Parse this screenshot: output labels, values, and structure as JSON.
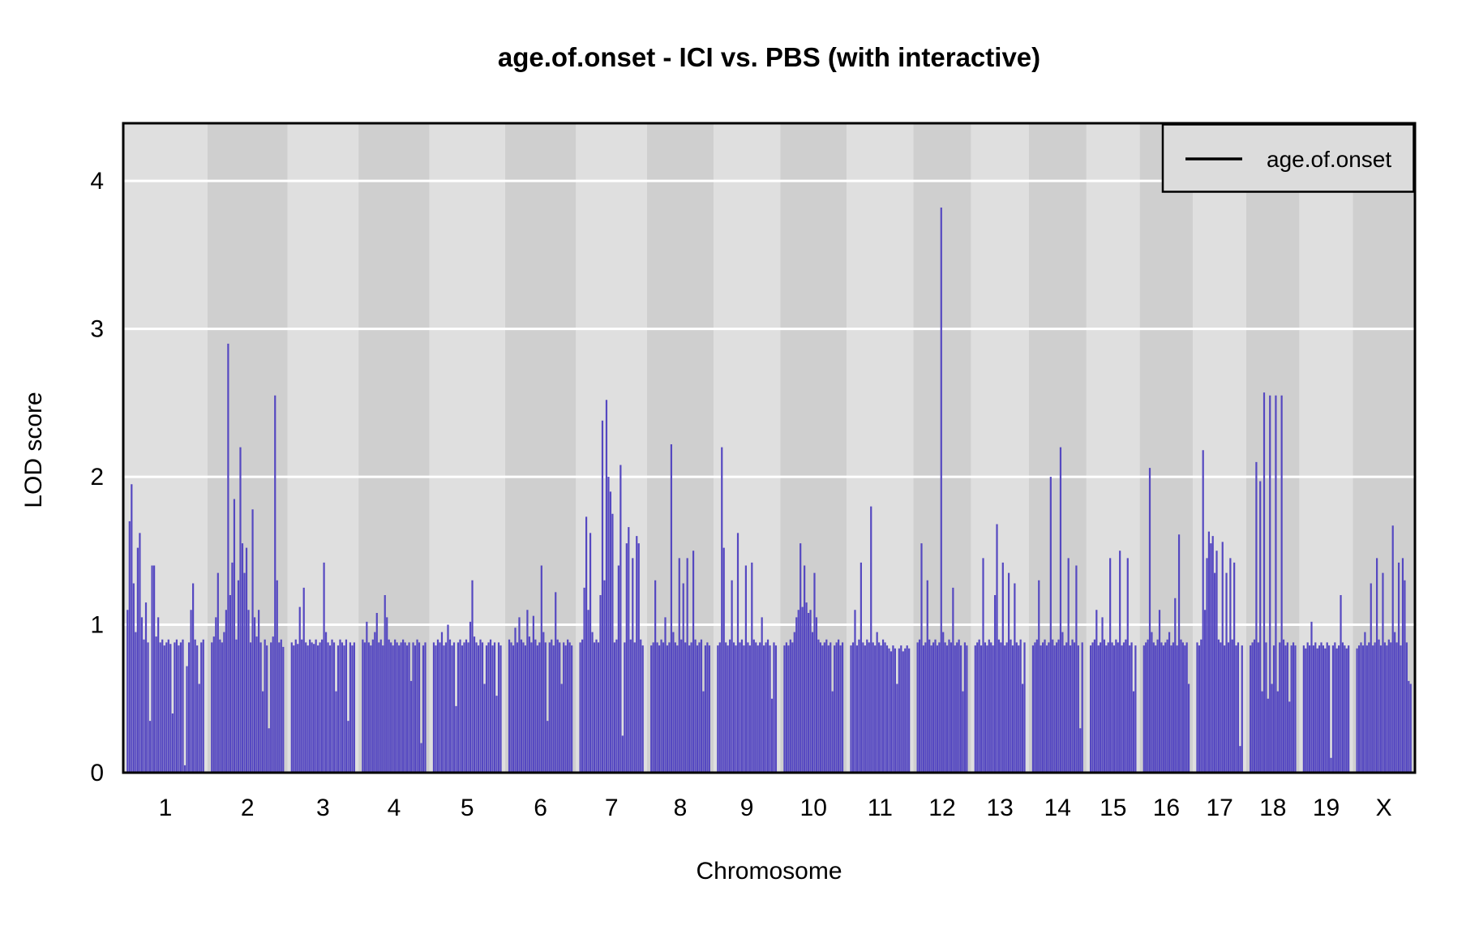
{
  "chart_data": {
    "type": "line",
    "render_style": "dense-vertical-lod-profile",
    "title": "age.of.onset - ICI vs. PBS (with interactive)",
    "xlabel": "Chromosome",
    "ylabel": "LOD score",
    "ylim": [
      0,
      4.39
    ],
    "yticks": [
      0,
      1,
      2,
      3,
      4
    ],
    "grid": "horizontal-white-lines-at-integer-lod",
    "legend": {
      "label": "age.of.onset",
      "position": "top-right",
      "line_color": "#000000",
      "background": "#DCDCDC"
    },
    "colors": {
      "series": "#5548C1",
      "band_light": "#DFDFDF",
      "band_dark": "#CFCFCF",
      "gridline": "#FFFFFF",
      "border": "#000000",
      "page_background": "#FFFFFF"
    },
    "notable_peaks": [
      {
        "chromosome": "2",
        "lod": 2.9
      },
      {
        "chromosome": "2",
        "lod": 2.55
      },
      {
        "chromosome": "7",
        "lod": 2.52
      },
      {
        "chromosome": "12",
        "lod": 3.82
      },
      {
        "chromosome": "18",
        "lod": 2.57
      }
    ],
    "chromosomes": [
      {
        "name": "1",
        "lod": [
          1.1,
          1.7,
          1.95,
          1.28,
          0.95,
          1.52,
          1.62,
          1.05,
          0.9,
          1.15,
          0.88,
          0.35,
          1.4,
          1.4,
          0.92,
          1.05,
          0.88,
          0.9,
          0.86,
          0.88,
          0.9,
          0.87,
          0.4,
          0.88,
          0.9,
          0.86,
          0.88,
          0.9,
          0.05,
          0.72,
          0.88,
          1.1,
          1.28,
          0.9,
          0.86,
          0.6,
          0.88,
          0.9
        ]
      },
      {
        "name": "2",
        "lod": [
          0.88,
          0.92,
          1.05,
          1.35,
          0.9,
          0.88,
          0.95,
          1.1,
          2.9,
          1.2,
          1.42,
          1.85,
          0.9,
          1.3,
          2.2,
          1.55,
          1.35,
          1.52,
          1.1,
          0.88,
          1.78,
          1.05,
          0.92,
          1.1,
          0.88,
          0.55,
          0.9,
          0.86,
          0.3,
          0.88,
          0.92,
          2.55,
          1.3,
          0.88,
          0.9,
          0.85
        ]
      },
      {
        "name": "3",
        "lod": [
          0.88,
          0.86,
          0.9,
          0.87,
          1.12,
          0.9,
          1.25,
          0.88,
          0.86,
          0.9,
          0.88,
          0.87,
          0.9,
          0.86,
          0.88,
          0.9,
          1.42,
          0.95,
          0.88,
          0.86,
          0.9,
          0.88,
          0.55,
          0.86,
          0.9,
          0.88,
          0.86,
          0.9,
          0.35,
          0.88,
          0.86,
          0.88
        ]
      },
      {
        "name": "4",
        "lod": [
          0.9,
          0.88,
          1.02,
          0.88,
          0.86,
          0.9,
          0.95,
          1.08,
          0.88,
          0.9,
          0.86,
          1.2,
          1.05,
          0.9,
          0.88,
          0.86,
          0.9,
          0.88,
          0.86,
          0.88,
          0.9,
          0.88,
          0.86,
          0.88,
          0.62,
          0.88,
          0.86,
          0.9,
          0.88,
          0.2,
          0.86,
          0.88
        ]
      },
      {
        "name": "5",
        "lod": [
          0.88,
          0.86,
          0.9,
          0.88,
          0.95,
          0.86,
          0.88,
          1.0,
          0.9,
          0.86,
          0.88,
          0.45,
          0.88,
          0.9,
          0.86,
          0.88,
          0.9,
          0.88,
          1.02,
          1.3,
          0.92,
          0.88,
          0.86,
          0.9,
          0.88,
          0.6,
          0.86,
          0.88,
          0.9,
          0.86,
          0.88,
          0.52,
          0.88,
          0.86
        ]
      },
      {
        "name": "6",
        "lod": [
          0.9,
          0.88,
          0.86,
          0.98,
          0.88,
          1.05,
          0.9,
          0.88,
          0.86,
          1.1,
          0.92,
          0.88,
          1.06,
          0.9,
          0.86,
          0.88,
          1.4,
          0.95,
          0.88,
          0.35,
          0.88,
          0.9,
          0.86,
          1.22,
          0.9,
          0.88,
          0.6,
          0.88,
          0.86,
          0.9,
          0.88,
          0.86
        ]
      },
      {
        "name": "7",
        "lod": [
          0.88,
          0.9,
          1.25,
          1.73,
          1.1,
          1.62,
          0.95,
          0.88,
          0.9,
          0.88,
          1.2,
          2.38,
          1.3,
          2.52,
          2.0,
          1.9,
          1.75,
          0.88,
          0.9,
          1.4,
          2.08,
          0.25,
          0.88,
          1.55,
          1.66,
          0.9,
          1.45,
          0.88,
          1.6,
          1.55,
          0.9,
          0.86
        ]
      },
      {
        "name": "8",
        "lod": [
          0.86,
          0.88,
          1.3,
          0.88,
          0.86,
          0.9,
          0.88,
          1.05,
          0.86,
          0.88,
          2.22,
          0.95,
          0.88,
          0.86,
          1.45,
          0.9,
          1.28,
          0.88,
          1.45,
          0.86,
          0.88,
          1.5,
          0.9,
          0.86,
          0.88,
          0.9,
          0.55,
          0.86,
          0.88,
          0.86
        ]
      },
      {
        "name": "9",
        "lod": [
          0.86,
          0.88,
          2.2,
          1.52,
          0.88,
          0.86,
          0.9,
          1.3,
          0.88,
          0.86,
          1.62,
          0.88,
          0.9,
          0.86,
          1.4,
          0.88,
          0.86,
          1.42,
          0.9,
          0.88,
          0.86,
          0.88,
          1.05,
          0.86,
          0.88,
          0.9,
          0.86,
          0.5,
          0.88,
          0.86
        ]
      },
      {
        "name": "10",
        "lod": [
          0.86,
          0.88,
          0.86,
          0.9,
          0.88,
          0.95,
          1.05,
          1.1,
          1.55,
          1.12,
          1.4,
          1.15,
          1.08,
          1.1,
          0.95,
          1.35,
          1.05,
          0.9,
          0.88,
          0.86,
          0.88,
          0.9,
          0.86,
          0.88,
          0.55,
          0.86,
          0.88,
          0.9,
          0.86,
          0.88
        ]
      },
      {
        "name": "11",
        "lod": [
          0.86,
          0.88,
          1.1,
          0.86,
          0.9,
          1.42,
          0.88,
          0.86,
          0.9,
          0.88,
          1.8,
          0.88,
          0.86,
          0.95,
          0.88,
          0.86,
          0.9,
          0.88,
          0.86,
          0.84,
          0.82,
          0.86,
          0.84,
          0.6,
          0.84,
          0.86,
          0.82,
          0.84,
          0.86,
          0.84
        ]
      },
      {
        "name": "12",
        "lod": [
          0.88,
          0.9,
          1.55,
          0.86,
          0.88,
          1.3,
          0.9,
          0.86,
          0.88,
          0.9,
          0.86,
          0.88,
          3.82,
          0.95,
          0.88,
          0.86,
          0.9,
          0.88,
          1.25,
          0.86,
          0.88,
          0.9,
          0.86,
          0.55,
          0.88,
          0.86
        ]
      },
      {
        "name": "13",
        "lod": [
          0.86,
          0.88,
          0.9,
          0.86,
          1.45,
          0.88,
          0.86,
          0.9,
          0.88,
          0.86,
          1.2,
          1.68,
          0.9,
          0.88,
          1.42,
          0.86,
          0.88,
          1.35,
          0.9,
          0.86,
          1.28,
          0.88,
          0.86,
          0.9,
          0.6,
          0.88
        ]
      },
      {
        "name": "14",
        "lod": [
          0.86,
          0.88,
          0.9,
          1.3,
          0.86,
          0.88,
          0.9,
          0.86,
          0.88,
          2.0,
          0.9,
          0.86,
          0.88,
          0.9,
          2.2,
          0.95,
          0.86,
          0.88,
          1.45,
          0.86,
          0.9,
          0.88,
          1.4,
          0.86,
          0.3,
          0.88
        ]
      },
      {
        "name": "15",
        "lod": [
          0.86,
          0.88,
          0.9,
          1.1,
          0.86,
          0.88,
          1.05,
          0.9,
          0.86,
          0.88,
          1.45,
          0.88,
          0.86,
          0.9,
          0.88,
          1.5,
          0.86,
          0.88,
          0.9,
          1.45,
          0.86,
          0.88,
          0.55,
          0.86
        ]
      },
      {
        "name": "16",
        "lod": [
          0.86,
          0.88,
          0.9,
          2.06,
          0.95,
          0.88,
          0.86,
          0.9,
          1.1,
          0.88,
          0.86,
          0.88,
          0.9,
          0.95,
          0.86,
          0.88,
          1.18,
          0.86,
          1.61,
          0.9,
          0.88,
          0.86,
          0.88,
          0.6
        ]
      },
      {
        "name": "17",
        "lod": [
          0.88,
          0.86,
          0.9,
          2.18,
          1.1,
          1.45,
          1.63,
          1.55,
          1.6,
          1.35,
          1.5,
          0.9,
          0.88,
          1.56,
          0.86,
          1.35,
          0.88,
          1.45,
          0.9,
          1.42,
          0.86,
          0.88,
          0.18,
          0.86
        ]
      },
      {
        "name": "18",
        "lod": [
          0.86,
          0.88,
          0.9,
          2.1,
          0.88,
          1.97,
          0.55,
          2.57,
          0.88,
          0.5,
          2.55,
          0.6,
          0.86,
          2.55,
          0.55,
          0.88,
          2.55,
          0.9,
          0.86,
          0.88,
          0.48,
          0.86,
          0.88,
          0.86
        ]
      },
      {
        "name": "19",
        "lod": [
          0.86,
          0.84,
          0.88,
          0.86,
          1.02,
          0.86,
          0.88,
          0.84,
          0.86,
          0.88,
          0.86,
          0.84,
          0.88,
          0.86,
          0.1,
          0.86,
          0.88,
          0.84,
          0.86,
          1.2,
          0.88,
          0.86,
          0.84,
          0.86
        ]
      },
      {
        "name": "X",
        "lod": [
          0.84,
          0.86,
          0.88,
          0.86,
          0.95,
          0.86,
          0.88,
          1.28,
          0.86,
          0.88,
          1.45,
          0.9,
          0.86,
          1.35,
          0.88,
          0.86,
          0.9,
          0.88,
          1.67,
          0.95,
          0.88,
          1.42,
          0.86,
          1.45,
          1.3,
          0.88,
          0.62,
          0.6
        ]
      }
    ]
  }
}
